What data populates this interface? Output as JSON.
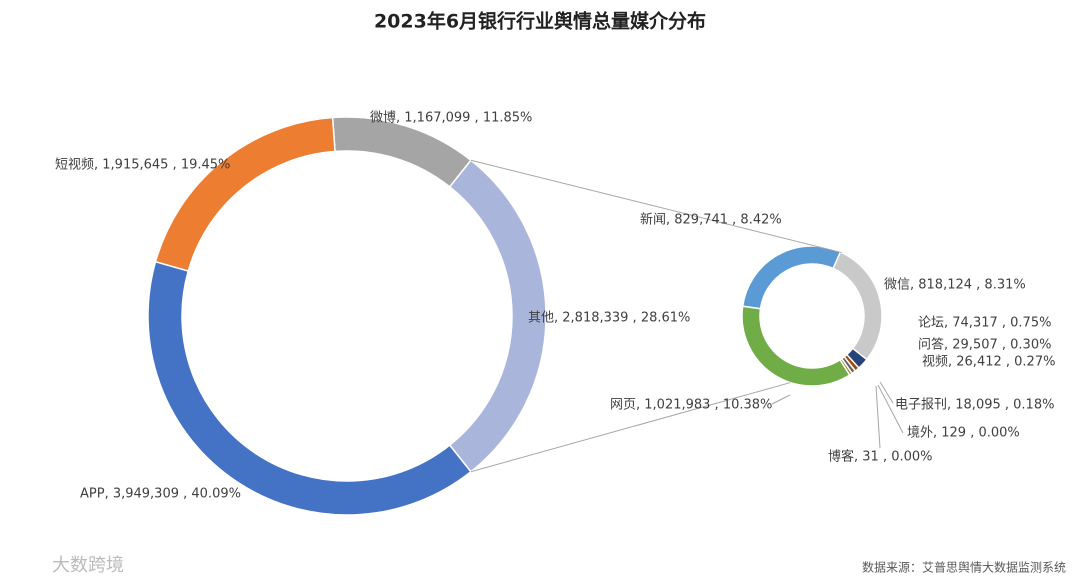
{
  "chart_data": {
    "type": "donut-of-donut",
    "title": "2023年6月银行行业舆情总量媒介分布",
    "source": "数据来源：艾普思舆情大数据监测系统",
    "watermark": "大数跨境",
    "main": {
      "data_labels": [
        "微博, 1,167,099 , 11.85%",
        "其他, 2,818,339 , 28.61%",
        "APP, 3,949,309 , 40.09%",
        "短视频, 1,915,645 , 19.45%"
      ],
      "values": [
        1167099,
        2818339,
        3949309,
        1915645
      ],
      "colors": [
        "#a5a5a5",
        "#a9b5db",
        "#4472c4",
        "#ed7d31"
      ]
    },
    "detail": {
      "data_labels": [
        "新闻, 829,741 , 8.42%",
        "微信, 818,124 , 8.31%",
        "论坛, 74,317 , 0.75%",
        "问答, 29,507 , 0.30%",
        "视频, 26,412 , 0.27%",
        "电子报刊, 18,095 , 0.18%",
        "境外, 129 , 0.00%",
        "博客, 31 , 0.00%",
        "网页, 1,021,983 , 10.38%"
      ],
      "values": [
        829741,
        818124,
        74317,
        29507,
        26412,
        18095,
        129,
        31,
        1021983
      ],
      "colors": [
        "#5b9bd5",
        "#c9c9c9",
        "#264478",
        "#9e480e",
        "#636363",
        "#997300",
        "#255e91",
        "#ffc000",
        "#70ad47"
      ]
    }
  }
}
